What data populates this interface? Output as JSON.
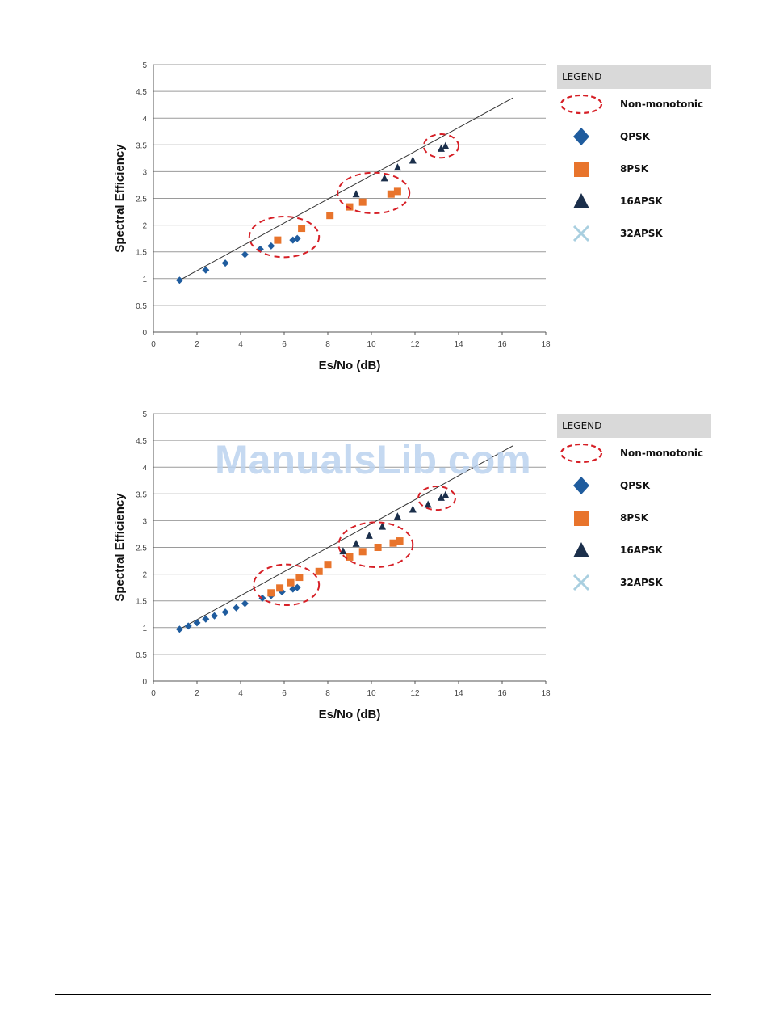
{
  "watermark": "ManualsLib.com",
  "legend": {
    "title": "LEGEND",
    "items": [
      {
        "label": "Non-monotonic",
        "symbol": "dashed-ellipse",
        "color": "#d61f26"
      },
      {
        "label": "QPSK",
        "symbol": "diamond",
        "color": "#1f5c9e"
      },
      {
        "label": "8PSK",
        "symbol": "square",
        "color": "#e8742c"
      },
      {
        "label": "16APSK",
        "symbol": "triangle",
        "color": "#1b2f4b"
      },
      {
        "label": "32APSK",
        "symbol": "cross",
        "color": "#a9cfe0"
      }
    ]
  },
  "chart_data": [
    {
      "type": "scatter",
      "xlabel": "Es/No (dB)",
      "ylabel": "Spectral Efficiency",
      "xlim": [
        0,
        18
      ],
      "ylim": [
        0,
        5
      ],
      "xticks": [
        "0",
        "2",
        "4",
        "6",
        "8",
        "10",
        "12",
        "14",
        "16",
        "18"
      ],
      "yticks": [
        "0",
        "0.5",
        "1",
        "1.5",
        "2",
        "2.5",
        "3",
        "3.5",
        "4",
        "4.5",
        "5"
      ],
      "grid": "horizontal",
      "legend_position": "right",
      "series": [
        {
          "name": "QPSK",
          "x": [
            1.2,
            2.4,
            3.3,
            4.2,
            4.9,
            5.4,
            6.4,
            6.6
          ],
          "y": [
            0.97,
            1.16,
            1.29,
            1.45,
            1.55,
            1.61,
            1.72,
            1.75
          ]
        },
        {
          "name": "8PSK",
          "x": [
            5.7,
            6.8,
            8.1,
            9.0,
            9.6,
            10.9,
            11.2
          ],
          "y": [
            1.72,
            1.94,
            2.18,
            2.34,
            2.43,
            2.58,
            2.63
          ]
        },
        {
          "name": "16APSK",
          "x": [
            9.3,
            10.6,
            11.2,
            11.9,
            13.2,
            13.4
          ],
          "y": [
            2.58,
            2.88,
            3.08,
            3.21,
            3.43,
            3.48
          ]
        },
        {
          "name": "32APSK",
          "x": [],
          "y": []
        }
      ],
      "trend_line": {
        "x": [
          1.2,
          16.5
        ],
        "y": [
          0.97,
          4.38
        ]
      },
      "annotations": [
        {
          "label": "Non-monotonic",
          "cx": 6.0,
          "cy": 1.78,
          "rx": 1.6,
          "ry": 0.38
        },
        {
          "label": "Non-monotonic",
          "cx": 10.1,
          "cy": 2.6,
          "rx": 1.65,
          "ry": 0.38
        },
        {
          "label": "Non-monotonic",
          "cx": 13.2,
          "cy": 3.48,
          "rx": 0.8,
          "ry": 0.22
        }
      ]
    },
    {
      "type": "scatter",
      "xlabel": "Es/No (dB)",
      "ylabel": "Spectral Efficiency",
      "xlim": [
        0,
        18
      ],
      "ylim": [
        0,
        5
      ],
      "xticks": [
        "0",
        "2",
        "4",
        "6",
        "8",
        "10",
        "12",
        "14",
        "16",
        "18"
      ],
      "yticks": [
        "0",
        "0.5",
        "1",
        "1.5",
        "2",
        "2.5",
        "3",
        "3.5",
        "4",
        "4.5",
        "5"
      ],
      "grid": "horizontal",
      "legend_position": "right",
      "series": [
        {
          "name": "QPSK",
          "x": [
            1.2,
            1.6,
            2.0,
            2.4,
            2.8,
            3.3,
            3.8,
            4.2,
            5.0,
            5.4,
            5.9,
            6.4,
            6.6
          ],
          "y": [
            0.97,
            1.03,
            1.09,
            1.16,
            1.22,
            1.29,
            1.37,
            1.45,
            1.55,
            1.6,
            1.67,
            1.72,
            1.75
          ]
        },
        {
          "name": "8PSK",
          "x": [
            5.4,
            5.8,
            6.3,
            6.7,
            7.6,
            8.0,
            9.0,
            9.6,
            10.3,
            11.0,
            11.3
          ],
          "y": [
            1.65,
            1.74,
            1.84,
            1.94,
            2.05,
            2.18,
            2.32,
            2.42,
            2.5,
            2.58,
            2.62
          ]
        },
        {
          "name": "16APSK",
          "x": [
            8.7,
            9.3,
            9.9,
            10.5,
            11.2,
            11.9,
            12.6,
            13.2,
            13.4
          ],
          "y": [
            2.43,
            2.57,
            2.72,
            2.89,
            3.08,
            3.21,
            3.3,
            3.43,
            3.48
          ]
        },
        {
          "name": "32APSK",
          "x": [],
          "y": []
        }
      ],
      "trend_line": {
        "x": [
          1.2,
          16.5
        ],
        "y": [
          0.97,
          4.4
        ]
      },
      "annotations": [
        {
          "label": "Non-monotonic",
          "cx": 6.1,
          "cy": 1.8,
          "rx": 1.5,
          "ry": 0.38
        },
        {
          "label": "Non-monotonic",
          "cx": 10.2,
          "cy": 2.55,
          "rx": 1.7,
          "ry": 0.42
        },
        {
          "label": "Non-monotonic",
          "cx": 13.0,
          "cy": 3.42,
          "rx": 0.85,
          "ry": 0.22
        }
      ]
    }
  ]
}
